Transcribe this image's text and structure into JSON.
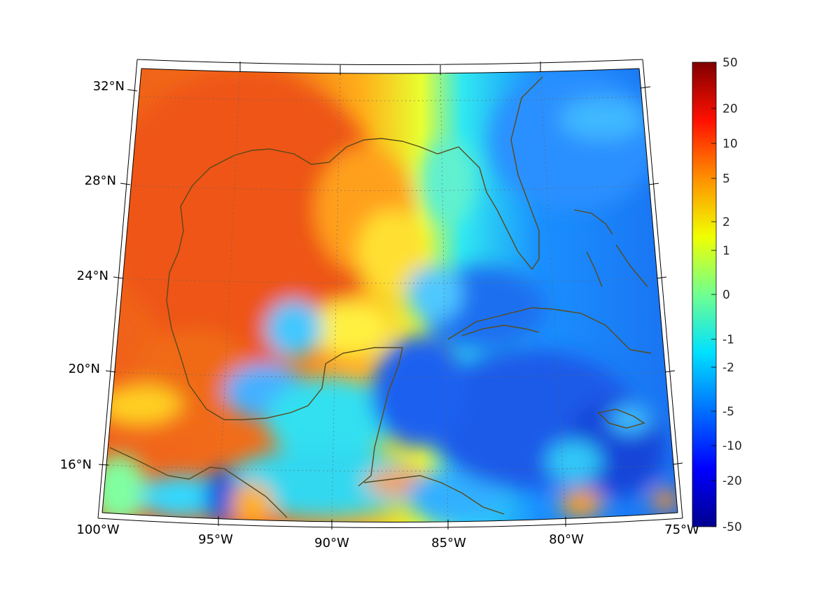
{
  "map": {
    "projection": "conic",
    "region": "Gulf of Mexico and Caribbean",
    "lon_range": [
      -100,
      -75
    ],
    "lat_range": [
      14,
      33
    ],
    "coastline_color": "#5a4a1a",
    "grid": "dotted",
    "lon_labels": [
      "100°W",
      "95°W",
      "90°W",
      "85°W",
      "80°W",
      "75°W"
    ],
    "lat_labels": [
      "32°N",
      "28°N",
      "24°N",
      "20°N",
      "16°N"
    ]
  },
  "colorbar": {
    "colormap": "jet",
    "scale": "symlog",
    "range": [
      -50,
      50
    ],
    "tick_labels": [
      "50",
      "20",
      "10",
      "5",
      "2",
      "1",
      "0",
      "-1",
      "-2",
      "-5",
      "-10",
      "-20",
      "-50"
    ],
    "colors": [
      "#00008f",
      "#0000ff",
      "#0080ff",
      "#00ffff",
      "#80ff80",
      "#ffff00",
      "#ff8000",
      "#ff0000",
      "#800000"
    ]
  },
  "field_colors": {
    "warm": "#f05a14",
    "orange": "#ff9a1a",
    "yellow": "#ffd21a",
    "cyan": "#2ee6f0",
    "lightblue": "#33b8ff",
    "blue": "#1a66f0",
    "deepblue": "#0a44d8"
  }
}
